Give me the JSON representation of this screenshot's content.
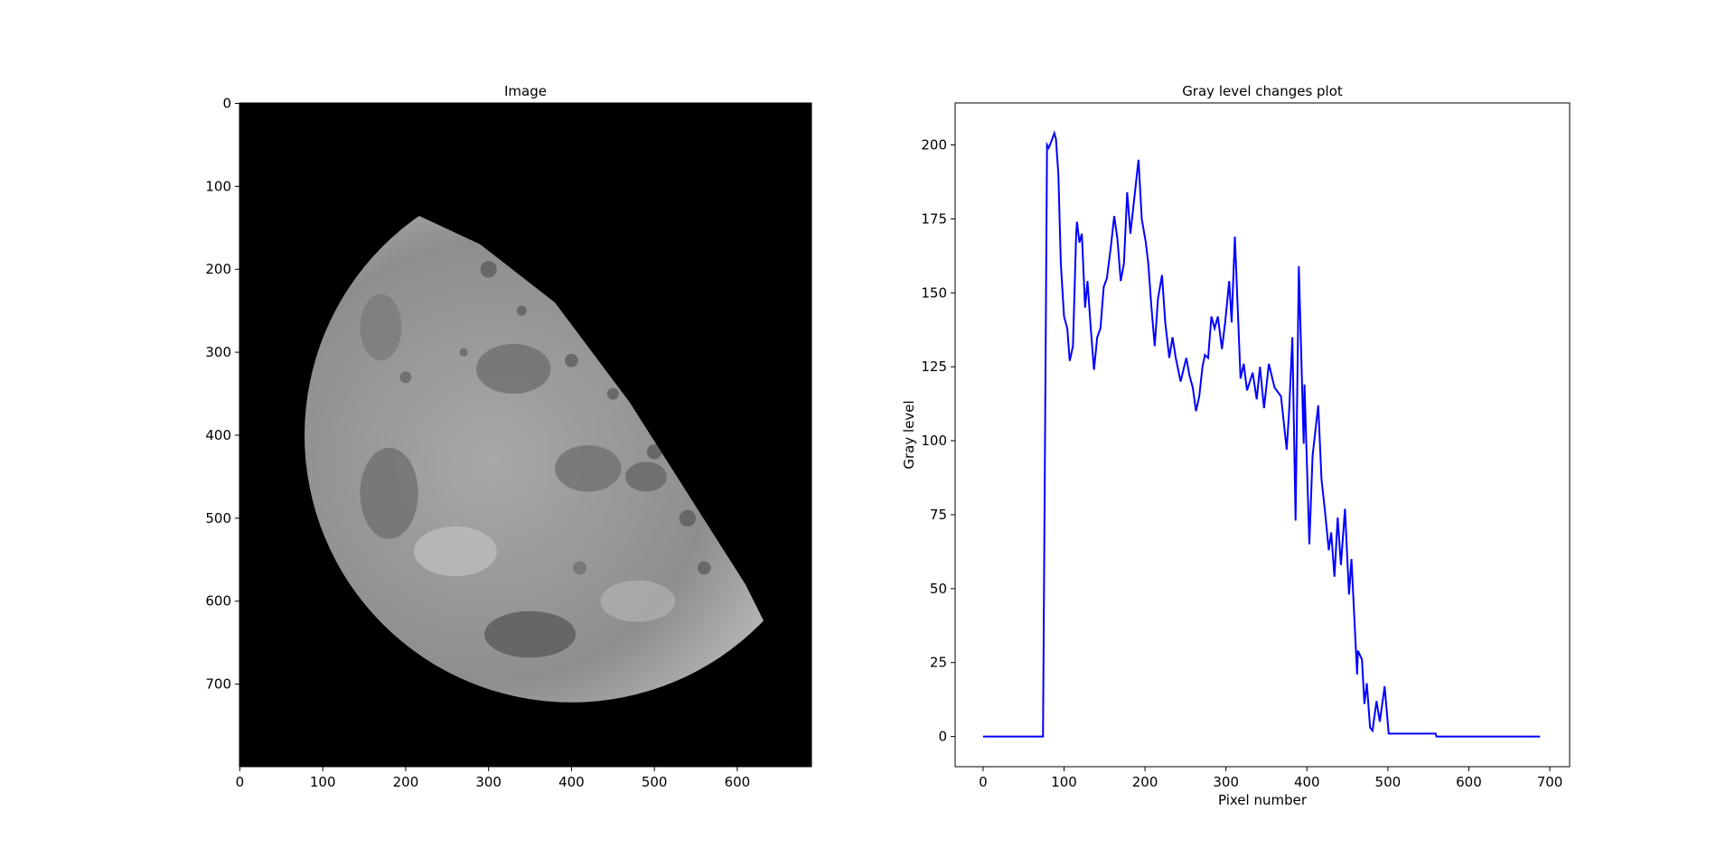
{
  "chart_data": [
    {
      "type": "image",
      "title": "Image",
      "xlim": [
        -0.5,
        689.5
      ],
      "ylim": [
        799.5,
        -0.5
      ],
      "xticks": [
        0,
        100,
        200,
        300,
        400,
        500,
        600
      ],
      "yticks": [
        0,
        100,
        200,
        300,
        400,
        500,
        600,
        700
      ]
    },
    {
      "type": "line",
      "title": "Gray level changes plot",
      "xlabel": "Pixel number",
      "ylabel": "Gray level",
      "color": "#0000ff",
      "xlim": [
        -34.5,
        724.5
      ],
      "ylim": [
        -10.2,
        214.2
      ],
      "xticks": [
        0,
        100,
        200,
        300,
        400,
        500,
        600,
        700
      ],
      "yticks": [
        0,
        25,
        50,
        75,
        100,
        125,
        150,
        175,
        200
      ],
      "x": [
        0,
        74,
        79,
        81,
        84,
        88,
        90,
        93,
        96,
        100,
        104,
        107,
        111,
        115,
        116,
        119,
        122,
        126,
        129,
        133,
        137,
        141,
        145,
        149,
        153,
        158,
        162,
        166,
        170,
        174,
        178,
        182,
        186,
        192,
        196,
        201,
        204,
        208,
        212,
        216,
        221,
        225,
        230,
        234,
        238,
        244,
        251,
        255,
        259,
        263,
        267,
        271,
        274,
        278,
        282,
        286,
        290,
        295,
        299,
        304,
        307,
        311,
        318,
        322,
        326,
        333,
        338,
        342,
        347,
        353,
        360,
        368,
        375,
        378,
        382,
        386,
        390,
        396,
        397,
        403,
        407,
        414,
        418,
        422,
        427,
        430,
        434,
        438,
        442,
        447,
        452,
        455,
        462,
        463,
        468,
        471,
        474,
        478,
        481,
        486,
        490,
        496,
        501,
        559,
        560,
        688
      ],
      "values": [
        0,
        0,
        200,
        199,
        201,
        204,
        202,
        190,
        160,
        142,
        138,
        127,
        132,
        170,
        174,
        167,
        170,
        145,
        154,
        138,
        124,
        135,
        138,
        152,
        155,
        166,
        176,
        168,
        154,
        160,
        184,
        170,
        180,
        195,
        175,
        167,
        160,
        145,
        132,
        148,
        156,
        140,
        128,
        135,
        128,
        120,
        128,
        122,
        118,
        110,
        115,
        125,
        129,
        128,
        142,
        138,
        142,
        131,
        140,
        154,
        140,
        169,
        121,
        126,
        117,
        123,
        114,
        125,
        111,
        126,
        118,
        115,
        97,
        110,
        135,
        73,
        159,
        99,
        119,
        65,
        95,
        112,
        87,
        77,
        63,
        69,
        54,
        74,
        58,
        77,
        48,
        60,
        21,
        29,
        26,
        11,
        18,
        3,
        2,
        12,
        5,
        17,
        1,
        1,
        0,
        0
      ]
    }
  ]
}
